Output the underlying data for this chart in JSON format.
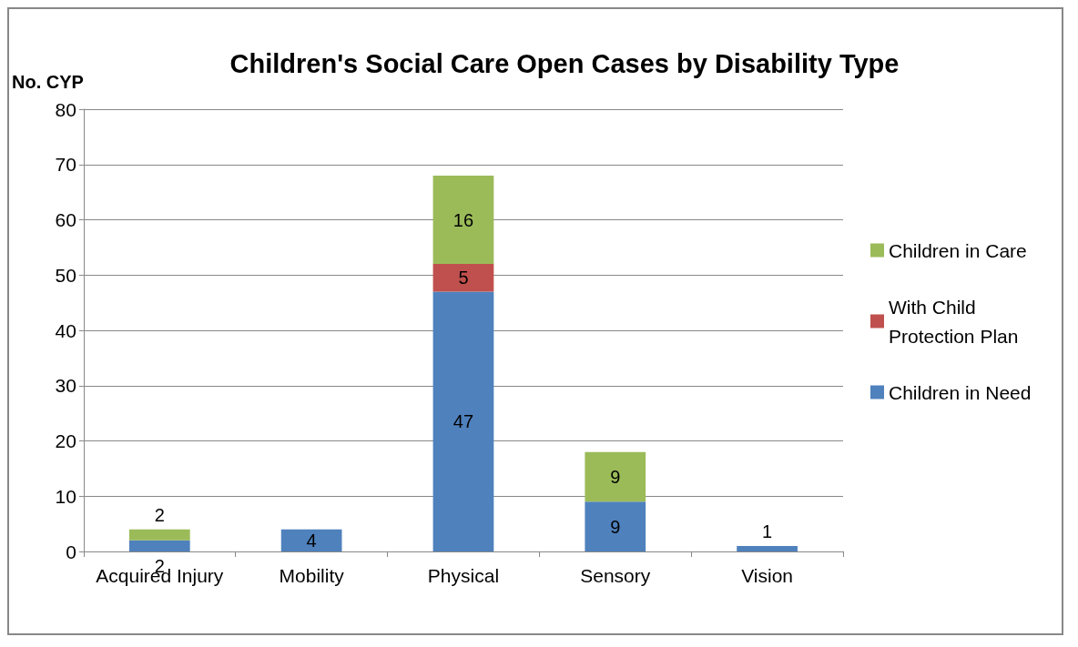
{
  "chart_data": {
    "type": "bar",
    "title": "Children's Social Care Open Cases by Disability Type",
    "ylabel": "No. CYP",
    "categories": [
      "Acquired Injury",
      "Mobility",
      "Physical",
      "Sensory",
      "Vision"
    ],
    "stacked": true,
    "series": [
      {
        "name": "Children in Need",
        "color": "#4f81bd",
        "values": [
          2,
          4,
          47,
          9,
          1
        ]
      },
      {
        "name": "With Child Protection Plan",
        "color": "#c0504d",
        "values": [
          null,
          null,
          5,
          null,
          null
        ]
      },
      {
        "name": "Children in Care",
        "color": "#9bbb59",
        "values": [
          2,
          null,
          16,
          9,
          null
        ]
      }
    ],
    "ylim": [
      0,
      80
    ],
    "yticks": [
      0,
      10,
      20,
      30,
      40,
      50,
      60,
      70,
      80
    ],
    "grid": "y",
    "legend": "right",
    "data_labels": true
  }
}
